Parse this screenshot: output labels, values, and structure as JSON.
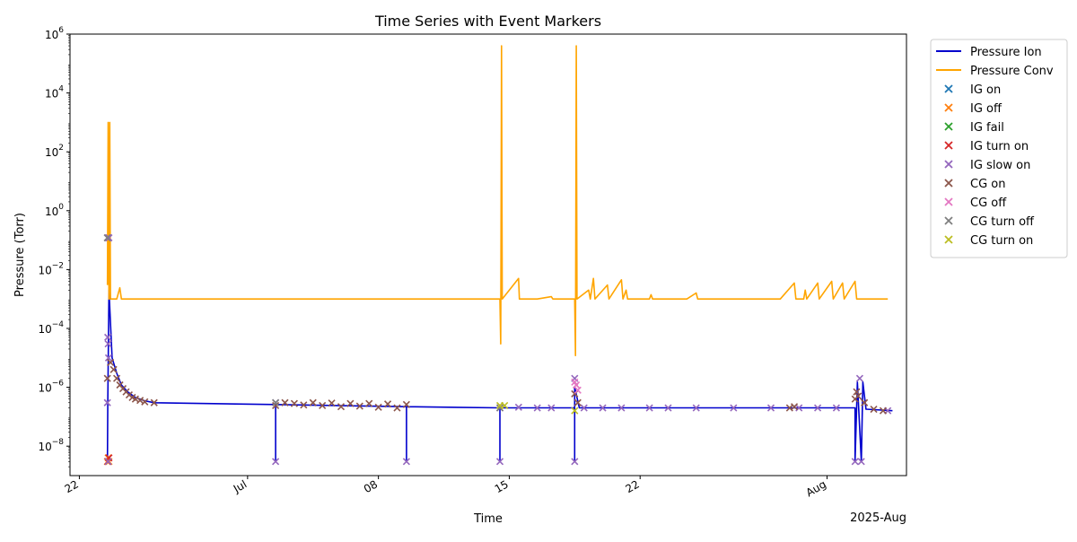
{
  "chart_data": {
    "type": "line",
    "title": "Time Series with Event Markers",
    "xlabel": "Time",
    "ylabel": "Pressure (Torr)",
    "y_scale": "log",
    "ylim": [
      "1e-9",
      "1e6"
    ],
    "xlim": [
      "2025-06-21 12:00",
      "2025-08-05 06:00"
    ],
    "x_ticks": [
      {
        "date": "2025-06-22",
        "label": "22"
      },
      {
        "date": "2025-07-01",
        "label": "Jul"
      },
      {
        "date": "2025-07-08",
        "label": "08"
      },
      {
        "date": "2025-07-15",
        "label": "15"
      },
      {
        "date": "2025-07-22",
        "label": "22"
      },
      {
        "date": "2025-08-01",
        "label": "Aug"
      }
    ],
    "x_offset_label": "2025-Aug",
    "y_ticks": [
      {
        "value": "1e-8",
        "base": "10",
        "exp": "−8"
      },
      {
        "value": "1e-6",
        "base": "10",
        "exp": "−6"
      },
      {
        "value": "1e-4",
        "base": "10",
        "exp": "−4"
      },
      {
        "value": "1e-2",
        "base": "10",
        "exp": "−2"
      },
      {
        "value": "1e0",
        "base": "10",
        "exp": "0"
      },
      {
        "value": "1e2",
        "base": "10",
        "exp": "2"
      },
      {
        "value": "1e4",
        "base": "10",
        "exp": "4"
      },
      {
        "value": "1e6",
        "base": "10",
        "exp": "6"
      }
    ],
    "legend_position": "outside right, top",
    "series": [
      {
        "name": "Pressure Ion",
        "kind": "line",
        "color": "#0000cd",
        "points": [
          [
            "2025-06-23 12:00",
            3e-09
          ],
          [
            "2025-06-23 12:30",
            3e-07
          ],
          [
            "2025-06-23 14:00",
            0.002
          ],
          [
            "2025-06-23 18:00",
            1e-05
          ],
          [
            "2025-06-24 00:00",
            3e-06
          ],
          [
            "2025-06-24 06:00",
            1.2e-06
          ],
          [
            "2025-06-24 14:00",
            7e-07
          ],
          [
            "2025-06-25 00:00",
            4.5e-07
          ],
          [
            "2025-06-25 12:00",
            3.5e-07
          ],
          [
            "2025-06-26 00:00",
            3e-07
          ],
          [
            "2025-07-02 12:00",
            2.6e-07
          ],
          [
            "2025-07-02 12:00",
            3e-09
          ],
          [
            "2025-07-02 12:00",
            2.6e-07
          ],
          [
            "2025-07-09 12:00",
            2.2e-07
          ],
          [
            "2025-07-09 12:00",
            3e-09
          ],
          [
            "2025-07-09 12:00",
            2.2e-07
          ],
          [
            "2025-07-14 12:00",
            2e-07
          ],
          [
            "2025-07-14 12:00",
            3e-09
          ],
          [
            "2025-07-14 12:00",
            2e-07
          ],
          [
            "2025-07-18 12:00",
            2e-07
          ],
          [
            "2025-07-18 12:00",
            3e-09
          ],
          [
            "2025-07-18 12:00",
            1e-06
          ],
          [
            "2025-07-18 18:00",
            2e-07
          ],
          [
            "2025-08-02 12:00",
            2e-07
          ],
          [
            "2025-08-02 12:00",
            3e-09
          ],
          [
            "2025-08-02 15:00",
            1.5e-06
          ],
          [
            "2025-08-02 20:00",
            3e-09
          ],
          [
            "2025-08-02 22:00",
            1.5e-06
          ],
          [
            "2025-08-03 02:00",
            1.8e-07
          ],
          [
            "2025-08-04 12:00",
            1.6e-07
          ]
        ]
      },
      {
        "name": "Pressure Conv",
        "kind": "line",
        "color": "#ffa500",
        "points": [
          [
            "2025-06-23 12:00",
            0.003
          ],
          [
            "2025-06-23 13:00",
            1000.0
          ],
          [
            "2025-06-23 14:00",
            0.001
          ],
          [
            "2025-06-23 15:00",
            1000.0
          ],
          [
            "2025-06-23 16:00",
            0.001
          ],
          [
            "2025-06-24 00:00",
            0.001
          ],
          [
            "2025-06-24 04:00",
            0.0024
          ],
          [
            "2025-06-24 06:00",
            0.001
          ],
          [
            "2025-07-14 12:00",
            0.001
          ],
          [
            "2025-07-14 13:00",
            3e-05
          ],
          [
            "2025-07-14 14:00",
            400000.0
          ],
          [
            "2025-07-14 15:00",
            0.001
          ],
          [
            "2025-07-15 12:00",
            0.005
          ],
          [
            "2025-07-15 13:00",
            0.001
          ],
          [
            "2025-07-16 12:00",
            0.001
          ],
          [
            "2025-07-17 06:00",
            0.0012
          ],
          [
            "2025-07-17 08:00",
            0.001
          ],
          [
            "2025-07-18 12:00",
            0.001
          ],
          [
            "2025-07-18 13:00",
            1.2e-05
          ],
          [
            "2025-07-18 14:00",
            400000.0
          ],
          [
            "2025-07-18 15:00",
            0.001
          ],
          [
            "2025-07-19 06:00",
            0.002
          ],
          [
            "2025-07-19 08:00",
            0.001
          ],
          [
            "2025-07-19 12:00",
            0.005
          ],
          [
            "2025-07-19 14:00",
            0.001
          ],
          [
            "2025-07-20 06:00",
            0.003
          ],
          [
            "2025-07-20 08:00",
            0.001
          ],
          [
            "2025-07-21 00:00",
            0.0045
          ],
          [
            "2025-07-21 02:00",
            0.001
          ],
          [
            "2025-07-21 06:00",
            0.002
          ],
          [
            "2025-07-21 08:00",
            0.001
          ],
          [
            "2025-07-22 12:00",
            0.001
          ],
          [
            "2025-07-22 14:00",
            0.0014
          ],
          [
            "2025-07-22 16:00",
            0.001
          ],
          [
            "2025-07-24 12:00",
            0.001
          ],
          [
            "2025-07-25 00:00",
            0.0016
          ],
          [
            "2025-07-25 02:00",
            0.001
          ],
          [
            "2025-07-29 12:00",
            0.001
          ],
          [
            "2025-07-30 06:00",
            0.0035
          ],
          [
            "2025-07-30 08:00",
            0.001
          ],
          [
            "2025-07-30 18:00",
            0.001
          ],
          [
            "2025-07-30 20:00",
            0.002
          ],
          [
            "2025-07-30 22:00",
            0.001
          ],
          [
            "2025-07-31 12:00",
            0.0035
          ],
          [
            "2025-07-31 14:00",
            0.001
          ],
          [
            "2025-08-01 06:00",
            0.004
          ],
          [
            "2025-08-01 08:00",
            0.001
          ],
          [
            "2025-08-01 20:00",
            0.0035
          ],
          [
            "2025-08-01 22:00",
            0.001
          ],
          [
            "2025-08-02 12:00",
            0.004
          ],
          [
            "2025-08-02 14:00",
            0.001
          ],
          [
            "2025-08-04 00:00",
            0.001
          ],
          [
            "2025-08-04 06:00",
            0.001
          ]
        ]
      },
      {
        "name": "IG on",
        "kind": "marker",
        "color": "#1f77b4",
        "points": []
      },
      {
        "name": "IG off",
        "kind": "marker",
        "color": "#ff7f0e",
        "points": [
          [
            "2025-06-23 12:00",
            3e-09
          ],
          [
            "2025-06-23 13:00",
            4e-09
          ],
          [
            "2025-06-23 14:00",
            3e-09
          ]
        ]
      },
      {
        "name": "IG fail",
        "kind": "marker",
        "color": "#2ca02c",
        "points": []
      },
      {
        "name": "IG turn on",
        "kind": "marker",
        "color": "#d62728",
        "points": [
          [
            "2025-06-23 12:30",
            3e-09
          ],
          [
            "2025-06-23 14:00",
            4e-09
          ]
        ]
      },
      {
        "name": "IG slow on",
        "kind": "marker",
        "color": "#9467bd",
        "points": [
          [
            "2025-06-23 12:00",
            0.12
          ],
          [
            "2025-06-23 13:00",
            0.12
          ],
          [
            "2025-06-23 14:00",
            0.12
          ],
          [
            "2025-06-23 12:30",
            5e-05
          ],
          [
            "2025-06-23 13:00",
            3e-05
          ],
          [
            "2025-06-23 13:30",
            1e-05
          ],
          [
            "2025-06-23 12:00",
            3e-07
          ],
          [
            "2025-06-23 13:00",
            3e-09
          ],
          [
            "2025-07-02 12:00",
            3e-09
          ],
          [
            "2025-07-02 12:00",
            3e-07
          ],
          [
            "2025-07-09 12:00",
            3e-09
          ],
          [
            "2025-07-14 12:00",
            3e-09
          ],
          [
            "2025-07-14 12:00",
            2e-07
          ],
          [
            "2025-07-15 12:00",
            2.1e-07
          ],
          [
            "2025-07-16 12:00",
            2e-07
          ],
          [
            "2025-07-17 06:00",
            2e-07
          ],
          [
            "2025-07-18 12:00",
            2e-06
          ],
          [
            "2025-07-18 12:00",
            3e-09
          ],
          [
            "2025-07-19 00:00",
            2e-07
          ],
          [
            "2025-07-20 00:00",
            2e-07
          ],
          [
            "2025-07-21 00:00",
            2e-07
          ],
          [
            "2025-07-22 12:00",
            2e-07
          ],
          [
            "2025-07-23 12:00",
            2e-07
          ],
          [
            "2025-07-25 00:00",
            2e-07
          ],
          [
            "2025-07-27 00:00",
            2e-07
          ],
          [
            "2025-07-29 00:00",
            2e-07
          ],
          [
            "2025-07-30 12:00",
            2e-07
          ],
          [
            "2025-07-31 12:00",
            2e-07
          ],
          [
            "2025-08-01 12:00",
            2e-07
          ],
          [
            "2025-08-02 12:00",
            3e-09
          ],
          [
            "2025-08-02 18:00",
            2e-06
          ],
          [
            "2025-08-02 20:00",
            3e-09
          ],
          [
            "2025-08-04 06:00",
            1.6e-07
          ]
        ]
      },
      {
        "name": "CG on",
        "kind": "marker",
        "color": "#8c564b",
        "points": [
          [
            "2025-06-23 12:00",
            2e-06
          ],
          [
            "2025-06-23 16:00",
            7e-06
          ],
          [
            "2025-06-23 20:00",
            4e-06
          ],
          [
            "2025-06-24 00:00",
            2e-06
          ],
          [
            "2025-06-24 04:00",
            1.2e-06
          ],
          [
            "2025-06-24 08:00",
            9e-07
          ],
          [
            "2025-06-24 12:00",
            7e-07
          ],
          [
            "2025-06-24 16:00",
            5.5e-07
          ],
          [
            "2025-06-24 20:00",
            4.5e-07
          ],
          [
            "2025-06-25 00:00",
            4e-07
          ],
          [
            "2025-06-25 06:00",
            3.6e-07
          ],
          [
            "2025-06-25 12:00",
            3.2e-07
          ],
          [
            "2025-06-26 00:00",
            3e-07
          ],
          [
            "2025-07-02 12:00",
            2.4e-07
          ],
          [
            "2025-07-03 00:00",
            3e-07
          ],
          [
            "2025-07-03 12:00",
            2.8e-07
          ],
          [
            "2025-07-04 00:00",
            2.5e-07
          ],
          [
            "2025-07-04 12:00",
            3e-07
          ],
          [
            "2025-07-05 00:00",
            2.4e-07
          ],
          [
            "2025-07-05 12:00",
            2.9e-07
          ],
          [
            "2025-07-06 00:00",
            2.2e-07
          ],
          [
            "2025-07-06 12:00",
            2.8e-07
          ],
          [
            "2025-07-07 00:00",
            2.3e-07
          ],
          [
            "2025-07-07 12:00",
            2.8e-07
          ],
          [
            "2025-07-08 00:00",
            2.1e-07
          ],
          [
            "2025-07-08 12:00",
            2.7e-07
          ],
          [
            "2025-07-09 00:00",
            2e-07
          ],
          [
            "2025-07-09 12:00",
            2.6e-07
          ],
          [
            "2025-07-18 12:00",
            6e-07
          ],
          [
            "2025-07-18 16:00",
            3e-07
          ],
          [
            "2025-07-30 00:00",
            2e-07
          ],
          [
            "2025-07-30 06:00",
            2.2e-07
          ],
          [
            "2025-08-02 12:00",
            4e-07
          ],
          [
            "2025-08-02 14:00",
            7e-07
          ],
          [
            "2025-08-02 16:00",
            5e-07
          ],
          [
            "2025-08-03 00:00",
            3e-07
          ],
          [
            "2025-08-03 12:00",
            1.8e-07
          ],
          [
            "2025-08-04 00:00",
            1.6e-07
          ]
        ]
      },
      {
        "name": "CG off",
        "kind": "marker",
        "color": "#e377c2",
        "points": [
          [
            "2025-07-18 12:00",
            1.5e-06
          ],
          [
            "2025-07-18 14:00",
            1.2e-06
          ],
          [
            "2025-07-18 16:00",
            8e-07
          ]
        ]
      },
      {
        "name": "CG turn off",
        "kind": "marker",
        "color": "#7f7f7f",
        "points": [
          [
            "2025-06-23 12:00",
            0.12
          ],
          [
            "2025-07-02 12:00",
            3e-07
          ],
          [
            "2025-07-14 12:00",
            2e-07
          ]
        ]
      },
      {
        "name": "CG turn on",
        "kind": "marker",
        "color": "#bcbd22",
        "points": [
          [
            "2025-07-14 12:00",
            2.4e-07
          ],
          [
            "2025-07-14 18:00",
            2.4e-07
          ],
          [
            "2025-07-18 12:00",
            1.6e-07
          ]
        ]
      }
    ]
  }
}
